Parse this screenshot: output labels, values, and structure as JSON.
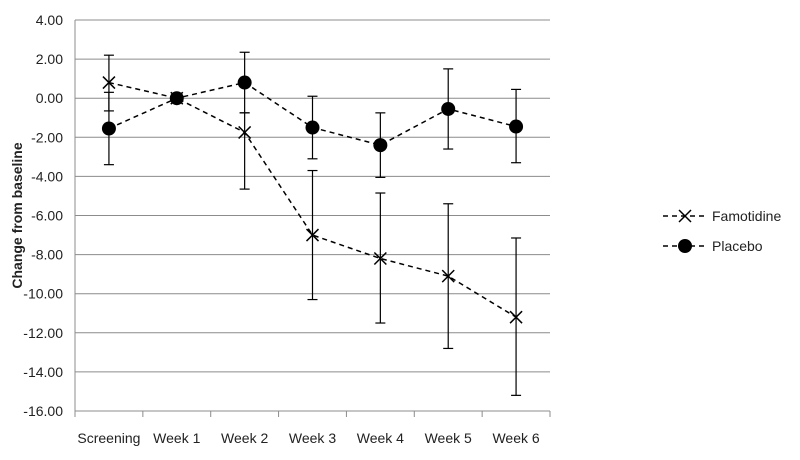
{
  "chart_data": {
    "type": "line",
    "title": "",
    "xlabel": "",
    "ylabel": "Change from baseline",
    "categories": [
      "Screening",
      "Week 1",
      "Week 2",
      "Week 3",
      "Week 4",
      "Week 5",
      "Week 6"
    ],
    "ylim": [
      -16,
      4
    ],
    "yticks": [
      {
        "value": 4,
        "label": "4.00"
      },
      {
        "value": 2,
        "label": "2.00"
      },
      {
        "value": 0,
        "label": "0.00"
      },
      {
        "value": -2,
        "label": "-2.00"
      },
      {
        "value": -4,
        "label": "-4.00"
      },
      {
        "value": -6,
        "label": "-6.00"
      },
      {
        "value": -8,
        "label": "-8.00"
      },
      {
        "value": -10,
        "label": "-10.00"
      },
      {
        "value": -12,
        "label": "-12.00"
      },
      {
        "value": -14,
        "label": "-14.00"
      },
      {
        "value": -16,
        "label": "-16.00"
      }
    ],
    "grid": "horizontal",
    "legend_position": "right",
    "series": [
      {
        "name": "Famotidine",
        "marker": "x",
        "line_style": "dashed",
        "color": "#000000",
        "values": [
          0.8,
          0.0,
          -1.75,
          -7.0,
          -8.2,
          -9.1,
          -11.2
        ],
        "error_high": [
          2.2,
          0.0,
          -0.75,
          -3.7,
          -4.85,
          -5.4,
          -7.15
        ],
        "error_low": [
          -0.65,
          0.0,
          -4.65,
          -10.3,
          -11.5,
          -12.8,
          -15.2
        ]
      },
      {
        "name": "Placebo",
        "marker": "circle",
        "line_style": "dashed",
        "color": "#000000",
        "values": [
          -1.55,
          0.0,
          0.8,
          -1.5,
          -2.4,
          -0.55,
          -1.45
        ],
        "error_high": [
          0.3,
          0.0,
          2.35,
          0.1,
          -0.75,
          1.5,
          0.45
        ],
        "error_low": [
          -3.4,
          0.0,
          -0.75,
          -3.1,
          -4.05,
          -2.6,
          -3.3
        ]
      }
    ]
  }
}
